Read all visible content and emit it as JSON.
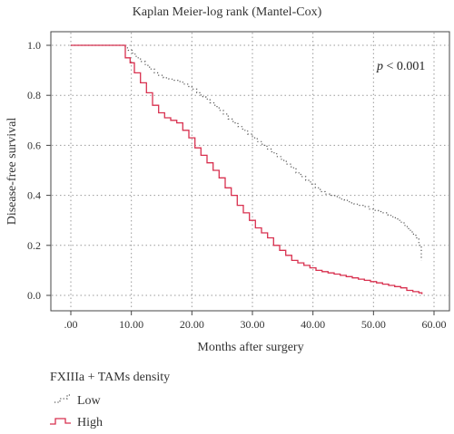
{
  "chart_data": {
    "type": "line",
    "title": "Kaplan Meier-log rank (Mantel-Cox)",
    "xlabel": "Months after surgery",
    "ylabel": "Disease-free survival",
    "xlim": [
      0,
      60
    ],
    "ylim": [
      0,
      1
    ],
    "x_ticks": [
      ".00",
      "10.00",
      "20.00",
      "30.00",
      "40.00",
      "50.00",
      "60.00"
    ],
    "x_tick_values": [
      0,
      10,
      20,
      30,
      40,
      50,
      60
    ],
    "y_ticks": [
      "0.0",
      "0.2",
      "0.4",
      "0.6",
      "0.8",
      "1.0"
    ],
    "y_tick_values": [
      0,
      0.2,
      0.4,
      0.6,
      0.8,
      1.0
    ],
    "grid": "dotted vertical and horizontal",
    "annotation": "p < 0.001",
    "legend_title": "FXIIIa + TAMs density",
    "legend_position": "bottom-left, below chart",
    "series": [
      {
        "name": "Low",
        "style": "dotted",
        "color": "#555555",
        "x": [
          0,
          9.0,
          9.5,
          10.2,
          10.8,
          11.5,
          12.3,
          13.0,
          13.8,
          14.5,
          15.3,
          16.2,
          17.0,
          17.8,
          18.5,
          19.3,
          20.0,
          20.8,
          21.5,
          22.3,
          23.0,
          23.8,
          24.5,
          25.2,
          26.0,
          26.8,
          27.6,
          28.4,
          29.2,
          30.0,
          30.8,
          31.6,
          32.4,
          33.2,
          34.0,
          34.8,
          35.6,
          36.4,
          37.2,
          38.0,
          38.8,
          39.6,
          40.4,
          41.2,
          42.0,
          42.8,
          43.6,
          44.4,
          45.2,
          46.0,
          46.8,
          47.6,
          48.4,
          49.2,
          50.0,
          50.8,
          51.6,
          52.4,
          53.2,
          54.0,
          54.6,
          55.2,
          55.8,
          56.4,
          57.0,
          57.5,
          57.9
        ],
        "y": [
          1.0,
          0.99,
          0.98,
          0.965,
          0.95,
          0.935,
          0.92,
          0.905,
          0.89,
          0.88,
          0.87,
          0.865,
          0.86,
          0.855,
          0.845,
          0.835,
          0.825,
          0.81,
          0.795,
          0.785,
          0.77,
          0.755,
          0.74,
          0.725,
          0.705,
          0.69,
          0.675,
          0.66,
          0.645,
          0.63,
          0.615,
          0.6,
          0.585,
          0.57,
          0.555,
          0.54,
          0.525,
          0.51,
          0.49,
          0.475,
          0.46,
          0.445,
          0.43,
          0.415,
          0.405,
          0.4,
          0.395,
          0.385,
          0.38,
          0.37,
          0.365,
          0.36,
          0.355,
          0.345,
          0.34,
          0.335,
          0.33,
          0.32,
          0.31,
          0.3,
          0.29,
          0.275,
          0.26,
          0.245,
          0.23,
          0.2,
          0.14
        ]
      },
      {
        "name": "High",
        "style": "solid",
        "color": "#d8304f",
        "x": [
          0,
          9.0,
          9.8,
          10.5,
          11.5,
          12.5,
          13.5,
          14.5,
          15.5,
          16.5,
          17.5,
          18.5,
          19.5,
          20.5,
          21.5,
          22.5,
          23.5,
          24.5,
          25.5,
          26.5,
          27.5,
          28.5,
          29.5,
          30.5,
          31.5,
          32.5,
          33.5,
          34.5,
          35.5,
          36.5,
          37.5,
          38.5,
          39.5,
          40.5,
          41.5,
          42.5,
          43.5,
          44.5,
          45.5,
          46.5,
          47.5,
          48.5,
          49.5,
          50.5,
          51.5,
          52.5,
          53.5,
          54.5,
          55.5,
          56.5,
          57.5,
          58.0
        ],
        "y": [
          1.0,
          0.95,
          0.93,
          0.89,
          0.85,
          0.81,
          0.76,
          0.73,
          0.71,
          0.7,
          0.69,
          0.66,
          0.63,
          0.59,
          0.56,
          0.53,
          0.5,
          0.47,
          0.43,
          0.4,
          0.36,
          0.33,
          0.3,
          0.27,
          0.25,
          0.23,
          0.2,
          0.18,
          0.16,
          0.14,
          0.13,
          0.12,
          0.11,
          0.1,
          0.095,
          0.09,
          0.085,
          0.08,
          0.075,
          0.07,
          0.065,
          0.06,
          0.055,
          0.05,
          0.045,
          0.04,
          0.035,
          0.03,
          0.02,
          0.015,
          0.01,
          0.005
        ]
      }
    ]
  }
}
